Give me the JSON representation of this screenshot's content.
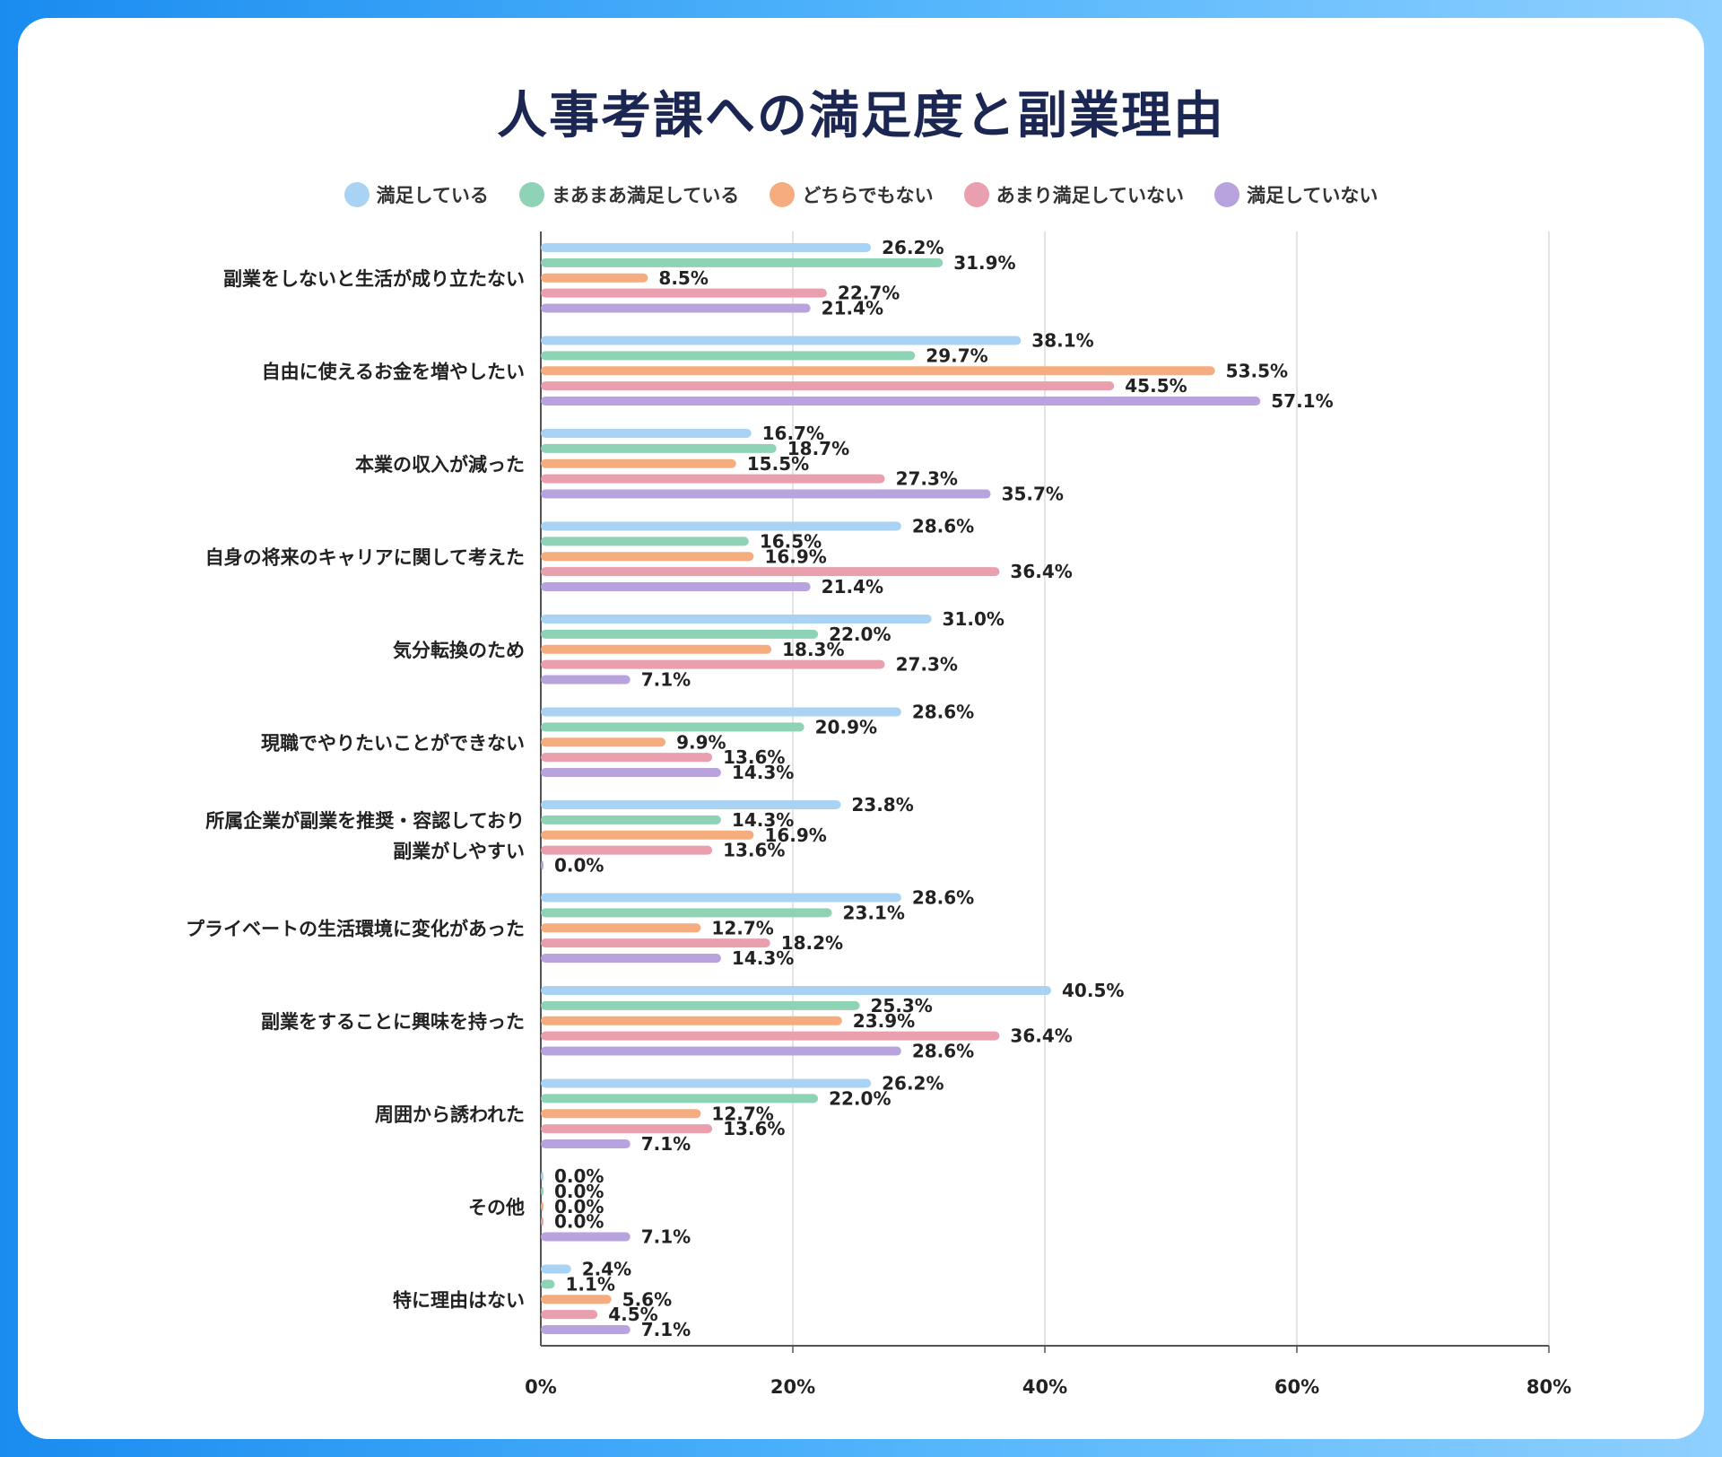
{
  "title": "人事考課への満足度と副業理由",
  "chart_data": {
    "type": "bar",
    "orientation": "horizontal",
    "xlim": [
      0,
      80
    ],
    "x_ticks": [
      "0%",
      "20%",
      "40%",
      "60%",
      "80%"
    ],
    "grid": true,
    "legend_position": "top",
    "value_suffix": "%",
    "categories": [
      [
        "副業をしないと生活が成り立たない"
      ],
      [
        "自由に使えるお金を増やしたい"
      ],
      [
        "本業の収入が減った"
      ],
      [
        "自身の将来のキャリアに関して考えた"
      ],
      [
        "気分転換のため"
      ],
      [
        "現職でやりたいことができない"
      ],
      [
        "所属企業が副業を推奨・容認しており",
        "副業がしやすい"
      ],
      [
        "プライベートの生活環境に変化があった"
      ],
      [
        "副業をすることに興味を持った"
      ],
      [
        "周囲から誘われた"
      ],
      [
        "その他"
      ],
      [
        "特に理由はない"
      ]
    ],
    "series": [
      {
        "name": "満足している",
        "color": "#a9d3f5",
        "values": [
          26.2,
          38.1,
          16.7,
          28.6,
          31.0,
          28.6,
          23.8,
          28.6,
          40.5,
          26.2,
          0.0,
          2.4
        ]
      },
      {
        "name": "まあまあ満足している",
        "color": "#8fd3b6",
        "values": [
          31.9,
          29.7,
          18.7,
          16.5,
          22.0,
          20.9,
          14.3,
          23.1,
          25.3,
          22.0,
          0.0,
          1.1
        ]
      },
      {
        "name": "どちらでもない",
        "color": "#f5ad80",
        "values": [
          8.5,
          53.5,
          15.5,
          16.9,
          18.3,
          9.9,
          16.9,
          12.7,
          23.9,
          12.7,
          0.0,
          5.6
        ]
      },
      {
        "name": "あまり満足していない",
        "color": "#ea9fae",
        "values": [
          22.7,
          45.5,
          27.3,
          36.4,
          27.3,
          13.6,
          13.6,
          18.2,
          36.4,
          13.6,
          0.0,
          4.5
        ]
      },
      {
        "name": "満足していない",
        "color": "#b8a3de",
        "values": [
          21.4,
          57.1,
          35.7,
          21.4,
          7.1,
          14.3,
          0.0,
          14.3,
          28.6,
          7.1,
          7.1,
          7.1
        ]
      }
    ]
  }
}
